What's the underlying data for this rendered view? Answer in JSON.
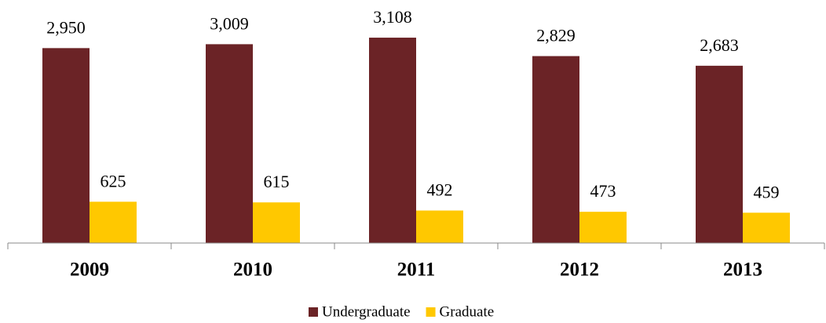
{
  "chart_data": {
    "type": "bar",
    "categories": [
      "2009",
      "2010",
      "2011",
      "2012",
      "2013"
    ],
    "series": [
      {
        "name": "Undergraduate",
        "color": "#6b2326",
        "values": [
          2950,
          3009,
          3108,
          2829,
          2683
        ],
        "value_labels": [
          "2,950",
          "3,009",
          "3,108",
          "2,829",
          "2,683"
        ]
      },
      {
        "name": "Graduate",
        "color": "#ffc800",
        "values": [
          625,
          615,
          492,
          473,
          459
        ]
      }
    ],
    "ylim": [
      0,
      3500
    ]
  }
}
